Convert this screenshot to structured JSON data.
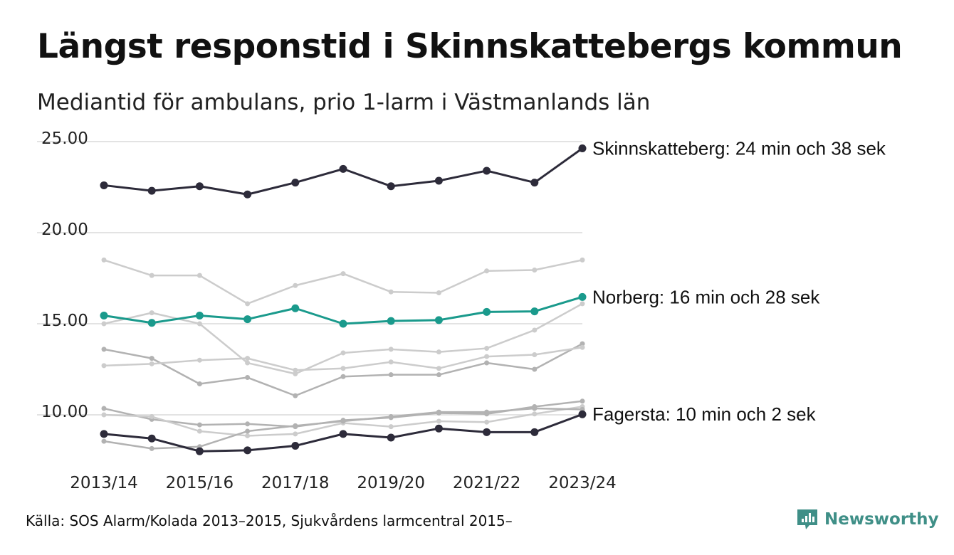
{
  "header": {
    "title": "Längst responstid i Skinnskattebergs kommun",
    "subtitle": "Mediantid för ambulans, prio 1-larm i Västmanlands län"
  },
  "footer": {
    "source": "Källa: SOS Alarm/Kolada 2013–2015, Sjukvårdens larmcentral 2015–",
    "brand": "Newsworthy",
    "brand_icon": "newsworthy-logo-icon"
  },
  "colors": {
    "highlight_dark": "#2d2b3a",
    "highlight_teal": "#1a9a8c",
    "context_light": "#cccccc",
    "context_mid": "#b2b2b2",
    "grid": "#e3e3e3",
    "brand": "#3f8f87"
  },
  "chart_data": {
    "type": "line",
    "x": [
      "2013/14",
      "2014/15",
      "2015/16",
      "2016/17",
      "2017/18",
      "2018/19",
      "2019/20",
      "2020/21",
      "2021/22",
      "2022/23",
      "2023/24"
    ],
    "x_tick_labels": [
      "2013/14",
      "2015/16",
      "2017/18",
      "2019/20",
      "2021/22",
      "2023/24"
    ],
    "y_ticks": [
      10,
      15,
      20,
      25
    ],
    "y_tick_labels": [
      "10.00",
      "15.00",
      "20.00",
      "25.00"
    ],
    "ylim": [
      7.5,
      25.6
    ],
    "grid": true,
    "legend": "none",
    "highlighted": [
      {
        "name": "Skinnskatteberg",
        "label": "Skinnskatteberg: 24 min och 38 sek",
        "color": "#2d2b3a",
        "values": [
          22.6,
          22.3,
          22.55,
          22.1,
          22.75,
          23.5,
          22.55,
          22.85,
          23.4,
          22.75,
          24.63
        ]
      },
      {
        "name": "Norberg",
        "label": "Norberg: 16 min och 28 sek",
        "color": "#1a9a8c",
        "values": [
          15.45,
          15.05,
          15.45,
          15.25,
          15.85,
          15.0,
          15.15,
          15.2,
          15.65,
          15.68,
          16.47
        ]
      },
      {
        "name": "Fagersta",
        "label": "Fagersta: 10 min och 2 sek",
        "color": "#2d2b3a",
        "values": [
          8.95,
          8.7,
          8.0,
          8.05,
          8.3,
          8.95,
          8.75,
          9.25,
          9.05,
          9.05,
          10.03
        ]
      }
    ],
    "context_series": [
      {
        "color": "#cccccc",
        "values": [
          18.5,
          17.65,
          17.65,
          16.1,
          17.1,
          17.75,
          16.75,
          16.7,
          17.9,
          17.95,
          18.5
        ]
      },
      {
        "color": "#cccccc",
        "values": [
          15.0,
          15.6,
          15.0,
          12.85,
          12.25,
          13.4,
          13.6,
          13.45,
          13.65,
          14.65,
          16.1
        ]
      },
      {
        "color": "#b2b2b2",
        "values": [
          13.6,
          13.1,
          11.7,
          12.05,
          11.05,
          12.1,
          12.2,
          12.2,
          12.85,
          12.5,
          13.9
        ]
      },
      {
        "color": "#cccccc",
        "values": [
          12.7,
          12.8,
          13.0,
          13.1,
          12.45,
          12.55,
          12.9,
          12.55,
          13.2,
          13.3,
          13.7
        ]
      },
      {
        "color": "#b2b2b2",
        "values": [
          10.35,
          9.75,
          9.45,
          9.5,
          9.35,
          9.7,
          9.85,
          10.1,
          10.05,
          10.45,
          10.75
        ]
      },
      {
        "color": "#cccccc",
        "values": [
          10.0,
          9.9,
          9.1,
          8.85,
          8.95,
          9.55,
          9.35,
          9.65,
          9.6,
          10.05,
          10.45
        ]
      },
      {
        "color": "#b2b2b2",
        "values": [
          8.55,
          8.15,
          8.25,
          9.1,
          9.4,
          9.65,
          9.9,
          10.15,
          10.15,
          10.35,
          10.3
        ]
      }
    ]
  }
}
